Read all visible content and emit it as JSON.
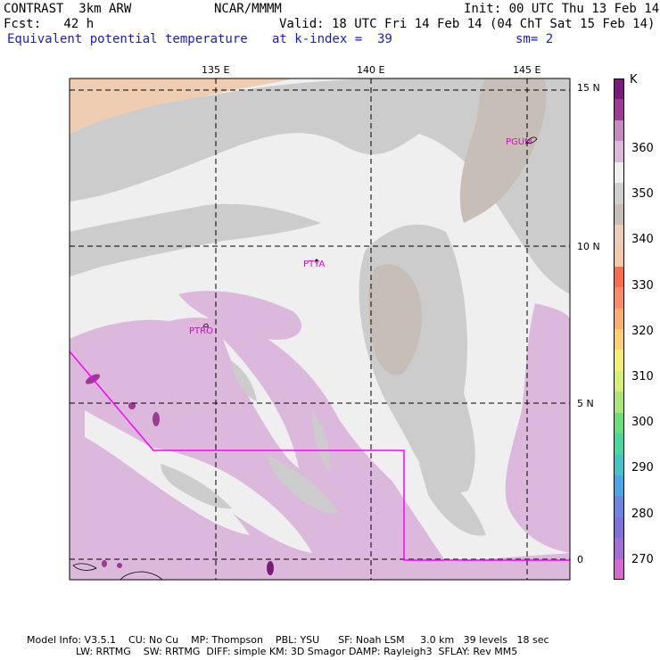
{
  "header": {
    "model": "CONTRAST  3km ARW",
    "center": "NCAR/MMMM",
    "init": "Init: 00 UTC Thu 13 Feb 14",
    "fcst": "Fcst:   42 h",
    "valid": "Valid: 18 UTC Fri 14 Feb 14 (04 ChT Sat 15 Feb 14)",
    "field": "Equivalent potential temperature",
    "level": "at k-index =  39",
    "smooth": "sm= 2"
  },
  "axes": {
    "lon_labels": [
      "135 E",
      "140 E",
      "145 E"
    ],
    "lat_labels": [
      "15 N",
      "10 N",
      "5 N",
      "0"
    ]
  },
  "sites": [
    "PGUM",
    "PTYA",
    "PTRO"
  ],
  "colorbar": {
    "unit": "K",
    "labels": [
      "360",
      "350",
      "340",
      "330",
      "320",
      "310",
      "300",
      "290",
      "280",
      "270"
    ],
    "colors": [
      "#7a1a7a",
      "#9c3a94",
      "#c78ac0",
      "#dcb8dc",
      "#f0f0f0",
      "#cfcfcf",
      "#c7bfb7",
      "#edcdb3",
      "#f2c9a9",
      "#ff6a4a",
      "#ff8a6a",
      "#ffae70",
      "#ffd070",
      "#f4ee72",
      "#d8ee70",
      "#a9e878",
      "#66e07a",
      "#48d8a2",
      "#40c6c6",
      "#46a8e4",
      "#6a86e4",
      "#8070dc",
      "#a26ed6",
      "#d66ad2"
    ]
  },
  "footer": {
    "line1": "Model Info: V3.5.1    CU: No Cu    MP: Thompson    PBL: YSU      SF: Noah LSM     3.0 km   39 levels   18 sec",
    "line2": "LW: RRTMG    SW: RRTMG  DIFF: simple KM: 3D Smagor DAMP: Rayleigh3  SFLAY: Rev MM5"
  }
}
